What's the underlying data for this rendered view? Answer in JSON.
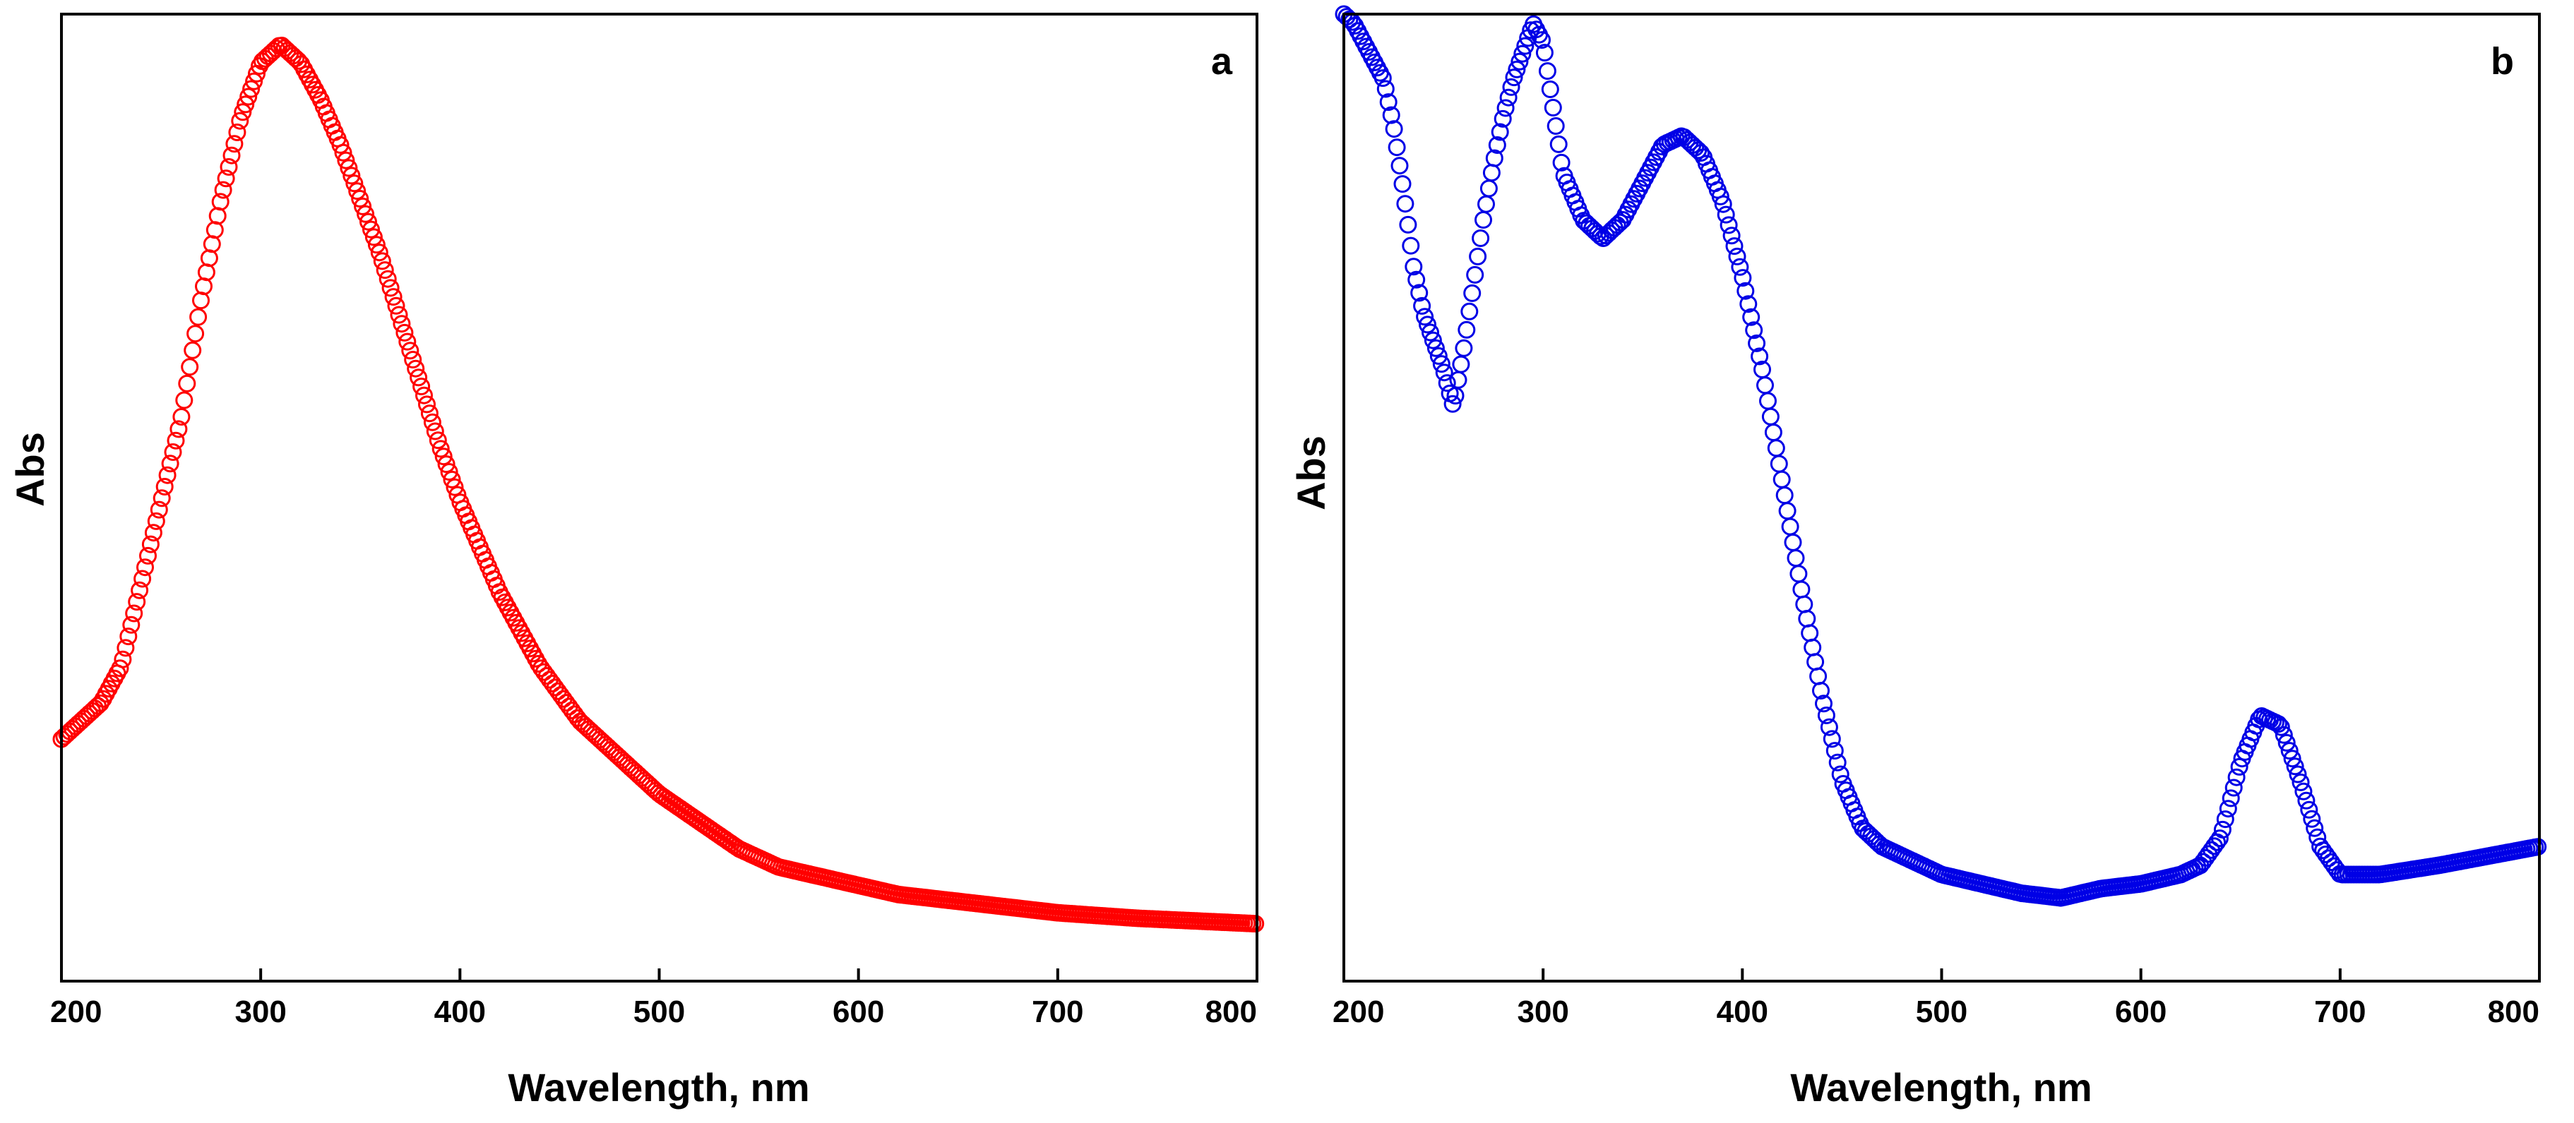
{
  "chart_data": [
    {
      "type": "scatter",
      "panel_label": "a",
      "xlabel": "Wavelength, nm",
      "ylabel": "Abs",
      "xlim": [
        200,
        800
      ],
      "ylim": [
        0,
        1
      ],
      "x_ticks": [
        "200",
        "300",
        "400",
        "500",
        "600",
        "700",
        "800"
      ],
      "color": "#ff0000",
      "series": [
        {
          "name": "a",
          "x": [
            200,
            210,
            220,
            230,
            240,
            250,
            260,
            270,
            280,
            290,
            300,
            310,
            320,
            330,
            340,
            350,
            360,
            370,
            380,
            390,
            400,
            420,
            440,
            460,
            480,
            500,
            520,
            540,
            560,
            580,
            600,
            620,
            640,
            660,
            680,
            700,
            720,
            740,
            760,
            780,
            800
          ],
          "y": [
            0.23,
            0.25,
            0.27,
            0.31,
            0.4,
            0.49,
            0.58,
            0.71,
            0.82,
            0.91,
            0.97,
            0.99,
            0.97,
            0.93,
            0.88,
            0.82,
            0.76,
            0.69,
            0.62,
            0.55,
            0.49,
            0.39,
            0.31,
            0.25,
            0.21,
            0.17,
            0.14,
            0.11,
            0.09,
            0.08,
            0.07,
            0.06,
            0.055,
            0.05,
            0.045,
            0.04,
            0.037,
            0.034,
            0.032,
            0.03,
            0.028
          ]
        }
      ]
    },
    {
      "type": "scatter",
      "panel_label": "b",
      "xlabel": "Wavelength, nm",
      "ylabel": "Abs",
      "xlim": [
        200,
        800
      ],
      "ylim": [
        0,
        1
      ],
      "x_ticks": [
        "200",
        "300",
        "400",
        "500",
        "600",
        "700",
        "800"
      ],
      "color": "#0000e6",
      "series": [
        {
          "name": "b",
          "x": [
            200,
            205,
            210,
            215,
            220,
            225,
            230,
            235,
            240,
            245,
            250,
            255,
            260,
            265,
            270,
            275,
            280,
            285,
            290,
            295,
            300,
            305,
            310,
            320,
            330,
            340,
            350,
            360,
            370,
            380,
            390,
            400,
            410,
            420,
            430,
            440,
            450,
            460,
            470,
            480,
            490,
            500,
            520,
            540,
            560,
            570,
            580,
            600,
            620,
            630,
            640,
            650,
            660,
            670,
            680,
            690,
            700,
            720,
            750,
            800
          ],
          "y": [
            1.0,
            0.99,
            0.97,
            0.95,
            0.93,
            0.88,
            0.81,
            0.73,
            0.68,
            0.65,
            0.62,
            0.58,
            0.64,
            0.71,
            0.78,
            0.84,
            0.89,
            0.93,
            0.96,
            0.99,
            0.97,
            0.9,
            0.83,
            0.78,
            0.76,
            0.78,
            0.82,
            0.86,
            0.87,
            0.85,
            0.8,
            0.72,
            0.62,
            0.5,
            0.38,
            0.27,
            0.18,
            0.13,
            0.11,
            0.1,
            0.09,
            0.08,
            0.07,
            0.06,
            0.055,
            0.06,
            0.065,
            0.07,
            0.08,
            0.09,
            0.12,
            0.2,
            0.25,
            0.24,
            0.18,
            0.11,
            0.08,
            0.08,
            0.09,
            0.11
          ]
        }
      ]
    }
  ]
}
